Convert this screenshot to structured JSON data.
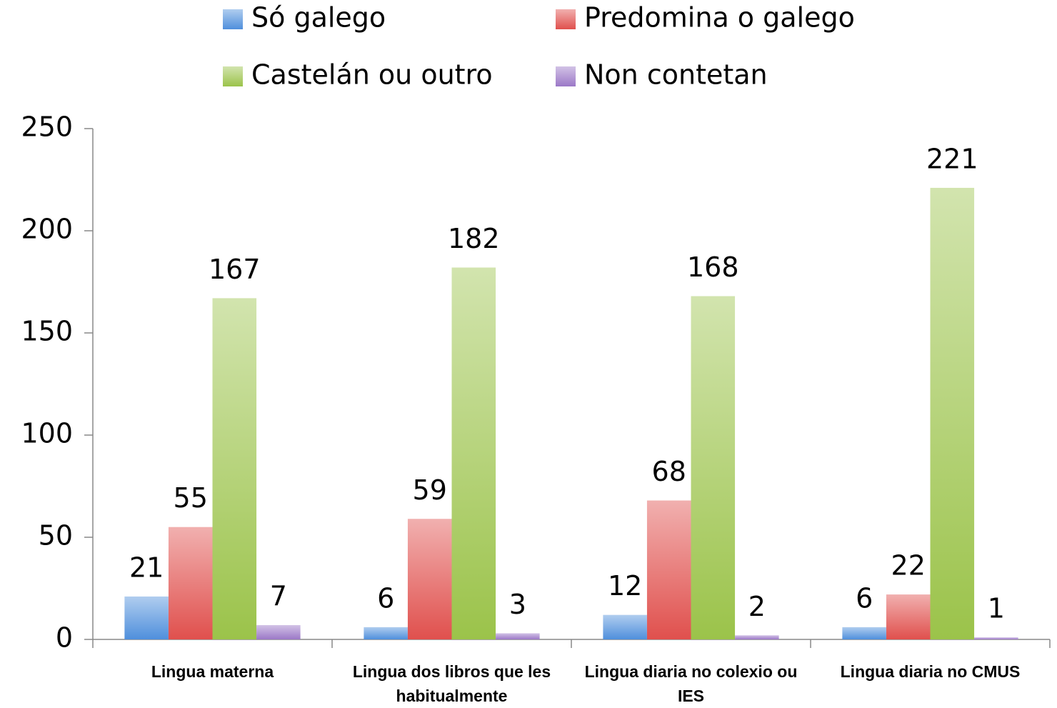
{
  "chart_data": {
    "type": "bar",
    "categories": [
      "Lingua materna",
      "Lingua dos libros que les habitualmente",
      "Lingua diaria no colexio ou IES",
      "Lingua diaria no CMUS"
    ],
    "series": [
      {
        "name": "Só galego",
        "color": "#4f8fdc",
        "values": [
          21,
          6,
          12,
          6
        ]
      },
      {
        "name": "Predomina o galego",
        "color": "#e0504d",
        "values": [
          55,
          59,
          68,
          22
        ]
      },
      {
        "name": "Castelán ou outro",
        "color": "#9bc34a",
        "values": [
          167,
          182,
          168,
          221
        ]
      },
      {
        "name": "Non contetan",
        "color": "#9b78c7",
        "values": [
          7,
          3,
          2,
          1
        ]
      }
    ],
    "ylim": [
      0,
      250
    ],
    "yticks": [
      0,
      50,
      100,
      150,
      200,
      250
    ],
    "grid": false
  }
}
